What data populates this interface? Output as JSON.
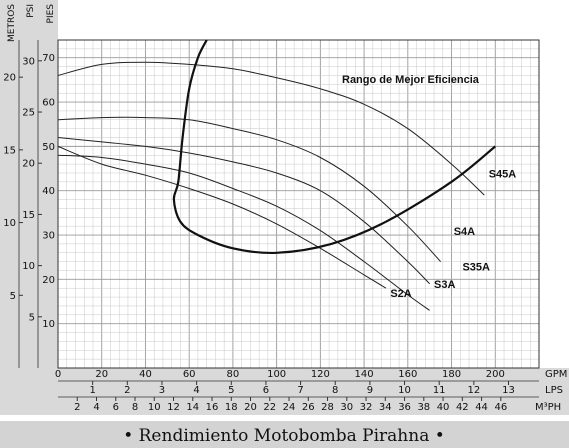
{
  "chart_data": {
    "type": "line",
    "title": "",
    "caption": "• Rendimiento Motobomba Pirahna •",
    "annotation": "Rango de Mejor Eficiencia",
    "grid": true,
    "y_axes": {
      "metros": {
        "label": "METROS",
        "ticks": [
          5,
          10,
          15,
          20
        ]
      },
      "psi": {
        "label": "PSI",
        "ticks": [
          5,
          10,
          15,
          20,
          25,
          30
        ]
      },
      "pies": {
        "label": "PIES",
        "ticks": [
          10,
          20,
          30,
          40,
          50,
          60,
          70
        ],
        "ylim": [
          0,
          74
        ]
      }
    },
    "x_axes": {
      "gpm": {
        "label": "GPM",
        "ticks": [
          0,
          20,
          40,
          60,
          80,
          100,
          120,
          140,
          160,
          180,
          200
        ],
        "xlim": [
          0,
          220
        ]
      },
      "lps": {
        "label": "LPS",
        "ticks": [
          1,
          2,
          3,
          4,
          5,
          6,
          7,
          8,
          9,
          10,
          11,
          12,
          13
        ]
      },
      "m3ph": {
        "label": "M3PH",
        "label_display": "M³PH",
        "ticks": [
          2,
          4,
          6,
          8,
          10,
          12,
          14,
          16,
          18,
          20,
          22,
          24,
          26,
          28,
          30,
          32,
          34,
          36,
          38,
          40,
          42,
          44,
          46
        ]
      }
    },
    "series": [
      {
        "name": "S45A",
        "x": [
          0,
          20,
          40,
          60,
          80,
          100,
          120,
          140,
          160,
          180,
          195
        ],
        "y": [
          66,
          68.5,
          69,
          68.5,
          67.5,
          65.5,
          63,
          59.5,
          54,
          46,
          39
        ]
      },
      {
        "name": "S4A",
        "x": [
          0,
          20,
          40,
          60,
          80,
          100,
          120,
          140,
          160,
          175
        ],
        "y": [
          56,
          56.5,
          56.5,
          56,
          54,
          51.5,
          47.5,
          41,
          32,
          24
        ]
      },
      {
        "name": "S35A",
        "x": [
          0,
          20,
          40,
          60,
          80,
          100,
          120,
          140,
          160,
          170
        ],
        "y": [
          52,
          51,
          50,
          48.5,
          46.5,
          44,
          40,
          33,
          24,
          19
        ]
      },
      {
        "name": "S3A",
        "x": [
          0,
          20,
          40,
          60,
          80,
          100,
          120,
          140,
          160,
          170
        ],
        "y": [
          48,
          47.5,
          46,
          44,
          40.5,
          36.5,
          31,
          24,
          16.5,
          13
        ]
      },
      {
        "name": "S2A",
        "x": [
          0,
          20,
          40,
          60,
          80,
          100,
          120,
          140,
          150
        ],
        "y": [
          50,
          46,
          43.5,
          40.5,
          37,
          32.5,
          27,
          21,
          18
        ]
      }
    ],
    "efficiency_curve": {
      "x": [
        68,
        64,
        60,
        57,
        55,
        53,
        56,
        64,
        80,
        100,
        125,
        150,
        180,
        200
      ],
      "y": [
        74,
        70,
        63,
        52,
        42,
        38,
        33,
        30,
        27,
        26,
        28,
        33,
        42,
        50
      ]
    },
    "label_points": [
      {
        "name": "S45A",
        "x": 197,
        "y": 43
      },
      {
        "name": "S4A",
        "x": 181,
        "y": 30
      },
      {
        "name": "S35A",
        "x": 185,
        "y": 22
      },
      {
        "name": "S3A",
        "x": 172,
        "y": 18
      },
      {
        "name": "S2A",
        "x": 152,
        "y": 16
      }
    ]
  }
}
